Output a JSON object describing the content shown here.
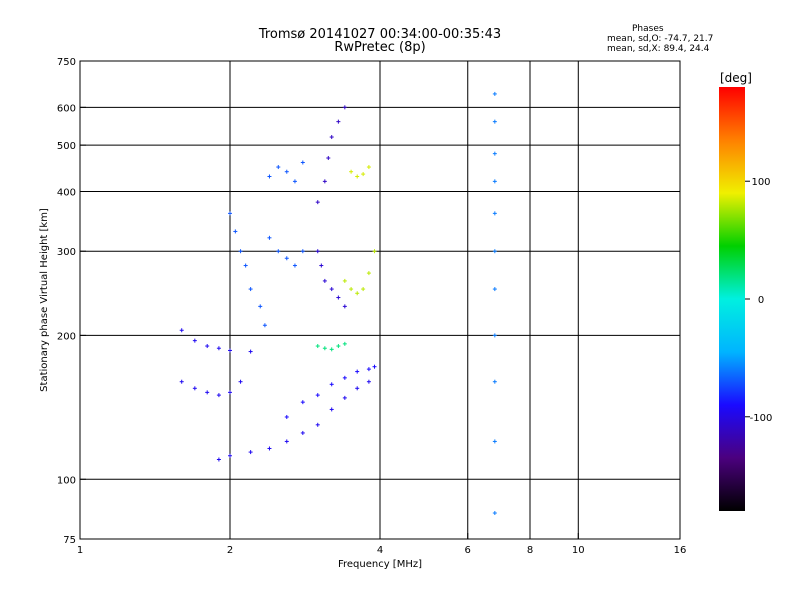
{
  "header": {
    "title_line1": "Tromsø 20141027 00:34:00-00:35:43",
    "title_line2": "RwPretec (8p)"
  },
  "stats": {
    "heading": "Phases",
    "o_line": "mean, sd,O: -74.7, 21.7",
    "x_line": "mean, sd,X:  89.4, 24.4"
  },
  "chart_data": {
    "type": "scatter",
    "title": "Tromsø 20141027 00:34:00-00:35:43",
    "subtitle": "RwPretec (8p)",
    "xlabel": "Frequency [MHz]",
    "ylabel": "Stationary phase Virtual Height [km]",
    "xscale": "log",
    "yscale": "log",
    "xlim": [
      1,
      16
    ],
    "ylim": [
      75,
      750
    ],
    "xticks": [
      {
        "value": 1,
        "label": "1"
      },
      {
        "value": 2,
        "label": "2"
      },
      {
        "value": 4,
        "label": "4"
      },
      {
        "value": 6,
        "label": "6"
      },
      {
        "value": 8,
        "label": "8"
      },
      {
        "value": 10,
        "label": "10"
      },
      {
        "value": 16,
        "label": "16"
      }
    ],
    "yticks": [
      {
        "value": 75,
        "label": "75"
      },
      {
        "value": 100,
        "label": "100"
      },
      {
        "value": 200,
        "label": "200"
      },
      {
        "value": 300,
        "label": "300"
      },
      {
        "value": 400,
        "label": "400"
      },
      {
        "value": 500,
        "label": "500"
      },
      {
        "value": 600,
        "label": "600"
      },
      {
        "value": 750,
        "label": "750"
      }
    ],
    "xgrid": [
      2,
      4,
      6,
      8,
      10
    ],
    "ygrid": [
      100,
      200,
      300,
      400,
      500,
      600
    ],
    "grid": true,
    "colorbar": {
      "label": "[deg]",
      "range": [
        -180,
        180
      ],
      "ticks": [
        {
          "value": 100,
          "label": "100"
        },
        {
          "value": 0,
          "label": "0"
        },
        {
          "value": -100,
          "label": "-100"
        }
      ],
      "colors": [
        "#000000",
        "#4b007e",
        "#1a0aff",
        "#00b4ff",
        "#00f0e0",
        "#00d000",
        "#f0f000",
        "#ff8000",
        "#ff0000"
      ]
    },
    "traces": [
      {
        "name": "",
        "phase": -95,
        "points": [
          [
            1.6,
            205
          ],
          [
            1.7,
            195
          ],
          [
            1.8,
            190
          ],
          [
            1.9,
            188
          ],
          [
            2.0,
            186
          ],
          [
            2.2,
            185
          ]
        ]
      },
      {
        "name": "",
        "phase": -95,
        "points": [
          [
            1.6,
            160
          ],
          [
            1.7,
            155
          ],
          [
            1.8,
            152
          ],
          [
            1.9,
            150
          ],
          [
            2.0,
            152
          ],
          [
            2.1,
            160
          ]
        ]
      },
      {
        "name": "",
        "phase": -95,
        "points": [
          [
            1.9,
            110
          ],
          [
            2.0,
            112
          ],
          [
            2.2,
            114
          ],
          [
            2.4,
            116
          ],
          [
            2.6,
            120
          ],
          [
            2.8,
            125
          ],
          [
            3.0,
            130
          ],
          [
            3.2,
            140
          ],
          [
            3.4,
            148
          ],
          [
            3.6,
            155
          ],
          [
            3.8,
            160
          ]
        ]
      },
      {
        "name": "",
        "phase": -90,
        "points": [
          [
            2.6,
            135
          ],
          [
            2.8,
            145
          ],
          [
            3.0,
            150
          ],
          [
            3.2,
            158
          ],
          [
            3.4,
            163
          ],
          [
            3.6,
            168
          ],
          [
            3.8,
            170
          ],
          [
            3.9,
            172
          ]
        ]
      },
      {
        "name": "",
        "phase": -70,
        "points": [
          [
            2.0,
            360
          ],
          [
            2.05,
            330
          ],
          [
            2.1,
            300
          ],
          [
            2.15,
            280
          ],
          [
            2.2,
            250
          ],
          [
            2.3,
            230
          ],
          [
            2.35,
            210
          ]
        ]
      },
      {
        "name": "",
        "phase": -70,
        "points": [
          [
            2.4,
            430
          ],
          [
            2.5,
            450
          ],
          [
            2.6,
            440
          ],
          [
            2.7,
            420
          ],
          [
            2.8,
            460
          ]
        ]
      },
      {
        "name": "",
        "phase": -70,
        "points": [
          [
            2.4,
            320
          ],
          [
            2.5,
            300
          ],
          [
            2.6,
            290
          ],
          [
            2.7,
            280
          ],
          [
            2.8,
            300
          ]
        ]
      },
      {
        "name": "",
        "phase": -110,
        "points": [
          [
            3.0,
            380
          ],
          [
            3.1,
            420
          ],
          [
            3.15,
            470
          ],
          [
            3.2,
            520
          ],
          [
            3.3,
            560
          ],
          [
            3.4,
            600
          ]
        ]
      },
      {
        "name": "",
        "phase": -105,
        "points": [
          [
            3.0,
            300
          ],
          [
            3.05,
            280
          ],
          [
            3.1,
            260
          ],
          [
            3.2,
            250
          ],
          [
            3.3,
            240
          ],
          [
            3.4,
            230
          ]
        ]
      },
      {
        "name": "",
        "phase": 80,
        "points": [
          [
            3.4,
            260
          ],
          [
            3.5,
            250
          ],
          [
            3.6,
            245
          ],
          [
            3.7,
            250
          ],
          [
            3.8,
            270
          ],
          [
            3.9,
            300
          ]
        ]
      },
      {
        "name": "",
        "phase": 85,
        "points": [
          [
            3.5,
            440
          ],
          [
            3.6,
            430
          ],
          [
            3.7,
            435
          ],
          [
            3.8,
            450
          ]
        ]
      },
      {
        "name": "",
        "phase": 20,
        "points": [
          [
            3.0,
            190
          ],
          [
            3.1,
            188
          ],
          [
            3.2,
            187
          ],
          [
            3.3,
            190
          ],
          [
            3.4,
            192
          ]
        ]
      },
      {
        "name": "",
        "phase": -60,
        "points": [
          [
            6.8,
            640
          ],
          [
            6.8,
            560
          ],
          [
            6.8,
            480
          ],
          [
            6.8,
            420
          ],
          [
            6.8,
            360
          ],
          [
            6.8,
            300
          ],
          [
            6.8,
            250
          ],
          [
            6.8,
            200
          ],
          [
            6.8,
            160
          ],
          [
            6.8,
            120
          ],
          [
            6.8,
            85
          ]
        ]
      }
    ]
  }
}
